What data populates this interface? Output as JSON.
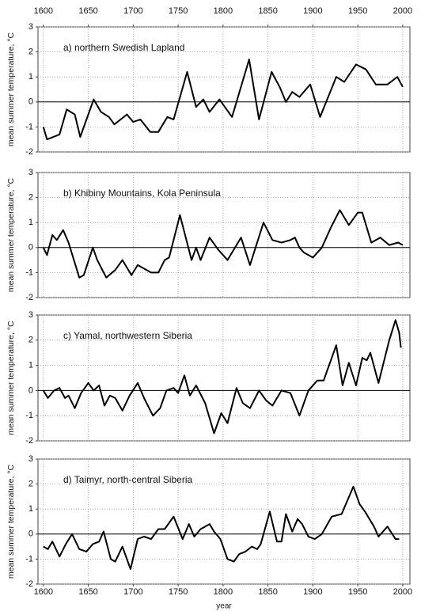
{
  "chart_data": [
    {
      "type": "line",
      "title": "a)  northern Swedish Lapland",
      "ylabel": "mean summer temperature, °C",
      "x": [
        1600,
        1604,
        1618,
        1626,
        1635,
        1641,
        1656,
        1664,
        1673,
        1679,
        1693,
        1700,
        1708,
        1719,
        1728,
        1738,
        1745,
        1760,
        1770,
        1778,
        1785,
        1796,
        1810,
        1829,
        1840,
        1854,
        1863,
        1870,
        1877,
        1885,
        1897,
        1908,
        1926,
        1935,
        1948,
        1959,
        1970,
        1983,
        1994,
        2000
      ],
      "values": [
        -1.0,
        -1.5,
        -1.3,
        -0.3,
        -0.5,
        -1.4,
        0.1,
        -0.4,
        -0.6,
        -0.9,
        -0.5,
        -0.8,
        -0.7,
        -1.2,
        -1.2,
        -0.6,
        -0.7,
        1.2,
        -0.2,
        0.1,
        -0.4,
        0.1,
        -0.6,
        1.7,
        -0.7,
        1.2,
        0.6,
        0.0,
        0.4,
        0.2,
        0.7,
        -0.6,
        1.0,
        0.8,
        1.5,
        1.3,
        0.7,
        0.7,
        1.0,
        0.6
      ],
      "color": "#000000",
      "xlim": [
        1594,
        2008
      ],
      "ylim": [
        -2,
        3
      ],
      "xticks": [
        1600,
        1650,
        1700,
        1750,
        1800,
        1850,
        1900,
        1950,
        2000
      ],
      "yticks": [
        -2,
        -1,
        0,
        1,
        2,
        3
      ],
      "grid": true,
      "xtick_labels": "top"
    },
    {
      "type": "line",
      "title": "b)  Khibiny Mountains, Kola Peninsula",
      "ylabel": "mean summer temperature, °C",
      "x": [
        1600,
        1604,
        1610,
        1615,
        1622,
        1628,
        1640,
        1645,
        1655,
        1660,
        1670,
        1680,
        1688,
        1698,
        1705,
        1715,
        1720,
        1728,
        1735,
        1740,
        1752,
        1765,
        1770,
        1775,
        1785,
        1795,
        1805,
        1815,
        1820,
        1830,
        1845,
        1855,
        1865,
        1875,
        1880,
        1885,
        1890,
        1895,
        1900,
        1910,
        1920,
        1930,
        1940,
        1950,
        1955,
        1965,
        1975,
        1985,
        1995,
        2000
      ],
      "values": [
        0.0,
        -0.3,
        0.5,
        0.3,
        0.7,
        0.2,
        -1.2,
        -1.1,
        0.0,
        -0.5,
        -1.2,
        -0.9,
        -0.5,
        -1.1,
        -0.7,
        -0.9,
        -1.0,
        -1.0,
        -0.5,
        -0.4,
        1.3,
        -0.5,
        0.0,
        -0.5,
        0.4,
        -0.1,
        -0.5,
        0.1,
        0.4,
        -0.7,
        1.0,
        0.3,
        0.2,
        0.3,
        0.4,
        0.0,
        -0.2,
        -0.3,
        -0.4,
        0.0,
        0.8,
        1.5,
        0.9,
        1.4,
        1.4,
        0.2,
        0.4,
        0.1,
        0.2,
        0.1
      ],
      "color": "#000000",
      "xlim": [
        1594,
        2008
      ],
      "ylim": [
        -2,
        3
      ],
      "xticks": [
        1600,
        1650,
        1700,
        1750,
        1800,
        1850,
        1900,
        1950,
        2000
      ],
      "yticks": [
        -2,
        -1,
        0,
        1,
        2,
        3
      ],
      "grid": true,
      "xtick_labels": "none"
    },
    {
      "type": "line",
      "title": "c)  Yamal, northwestern Siberia",
      "ylabel": "mean summer temperature, °C",
      "x": [
        1600,
        1605,
        1612,
        1618,
        1624,
        1628,
        1635,
        1642,
        1650,
        1656,
        1662,
        1668,
        1674,
        1680,
        1688,
        1696,
        1705,
        1712,
        1722,
        1730,
        1737,
        1745,
        1750,
        1757,
        1763,
        1770,
        1780,
        1790,
        1798,
        1805,
        1815,
        1822,
        1830,
        1840,
        1848,
        1855,
        1865,
        1875,
        1885,
        1895,
        1905,
        1912,
        1926,
        1933,
        1940,
        1948,
        1955,
        1960,
        1964,
        1973,
        1985,
        1992,
        1996,
        1998
      ],
      "values": [
        0.0,
        -0.3,
        0.0,
        0.1,
        -0.3,
        -0.2,
        -0.7,
        -0.1,
        0.3,
        0.0,
        0.2,
        -0.6,
        -0.2,
        -0.3,
        -0.8,
        -0.2,
        0.3,
        -0.3,
        -1.0,
        -0.7,
        0.0,
        0.1,
        -0.1,
        0.6,
        -0.2,
        0.2,
        -0.5,
        -1.7,
        -0.9,
        -1.3,
        0.1,
        -0.5,
        -0.7,
        0.0,
        -0.4,
        -0.6,
        0.0,
        -0.1,
        -1.0,
        0.0,
        0.4,
        0.4,
        1.8,
        0.2,
        1.1,
        0.2,
        1.3,
        1.2,
        1.5,
        0.3,
        2.0,
        2.8,
        2.3,
        1.7
      ],
      "color": "#000000",
      "xlim": [
        1594,
        2008
      ],
      "ylim": [
        -2,
        3
      ],
      "xticks": [
        1600,
        1650,
        1700,
        1750,
        1800,
        1850,
        1900,
        1950,
        2000
      ],
      "yticks": [
        -2,
        -1,
        0,
        1,
        2,
        3
      ],
      "grid": true,
      "xtick_labels": "none"
    },
    {
      "type": "line",
      "title": "d)  Taimyr, north-central Siberia",
      "ylabel": "mean summer temperature, °C",
      "xlabel": "year",
      "x": [
        1600,
        1605,
        1610,
        1618,
        1625,
        1632,
        1640,
        1648,
        1655,
        1662,
        1667,
        1675,
        1680,
        1688,
        1697,
        1705,
        1712,
        1720,
        1728,
        1735,
        1745,
        1755,
        1762,
        1768,
        1775,
        1785,
        1790,
        1797,
        1805,
        1812,
        1818,
        1825,
        1832,
        1838,
        1842,
        1852,
        1860,
        1865,
        1870,
        1877,
        1883,
        1888,
        1895,
        1902,
        1910,
        1921,
        1932,
        1945,
        1952,
        1958,
        1968,
        1973,
        1983,
        1992,
        1996
      ],
      "values": [
        -0.5,
        -0.6,
        -0.3,
        -0.9,
        -0.4,
        0.0,
        -0.6,
        -0.7,
        -0.4,
        -0.3,
        0.1,
        -1.0,
        -1.1,
        -0.5,
        -1.4,
        -0.2,
        -0.1,
        -0.2,
        0.2,
        0.2,
        0.7,
        -0.2,
        0.4,
        -0.1,
        0.2,
        0.4,
        0.1,
        -0.2,
        -1.0,
        -1.1,
        -0.8,
        -0.7,
        -0.5,
        -0.6,
        -0.4,
        0.9,
        -0.3,
        -0.3,
        0.8,
        0.1,
        0.6,
        0.4,
        -0.1,
        -0.2,
        0.0,
        0.7,
        0.8,
        1.9,
        1.2,
        0.9,
        0.3,
        -0.1,
        0.3,
        -0.2,
        -0.2
      ],
      "color": "#000000",
      "xlim": [
        1594,
        2008
      ],
      "ylim": [
        -2,
        3
      ],
      "xticks": [
        1600,
        1650,
        1700,
        1750,
        1800,
        1850,
        1900,
        1950,
        2000
      ],
      "yticks": [
        -2,
        -1,
        0,
        1,
        2,
        3
      ],
      "grid": true,
      "xtick_labels": "bottom"
    }
  ]
}
